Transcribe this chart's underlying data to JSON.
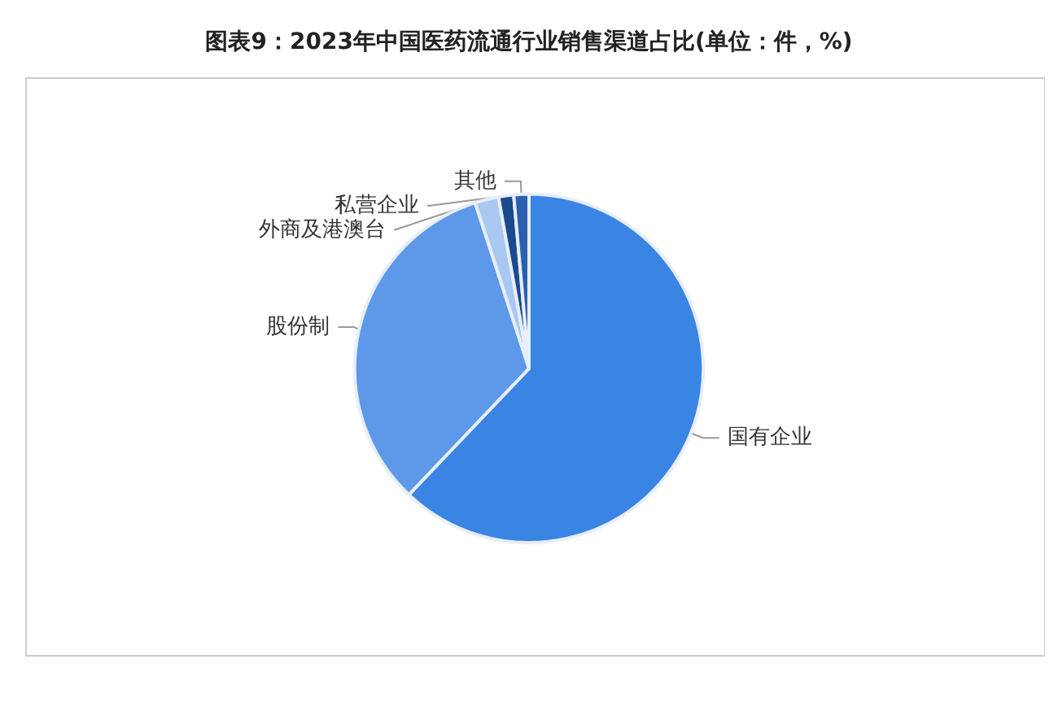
{
  "chart_data": {
    "type": "pie",
    "title": "图表9：2023年中国医药流通行业销售渠道占比(单位：件，%)",
    "categories": [
      "国有企业",
      "股份制",
      "外商及港澳台",
      "私营企业",
      "其他"
    ],
    "values": [
      62.1,
      32.9,
      2.2,
      1.4,
      1.4
    ],
    "colors": [
      "#3a84e4",
      "#5e98e8",
      "#a9c8f2",
      "#1c4a8f",
      "#2b60b0"
    ],
    "legend": false
  }
}
